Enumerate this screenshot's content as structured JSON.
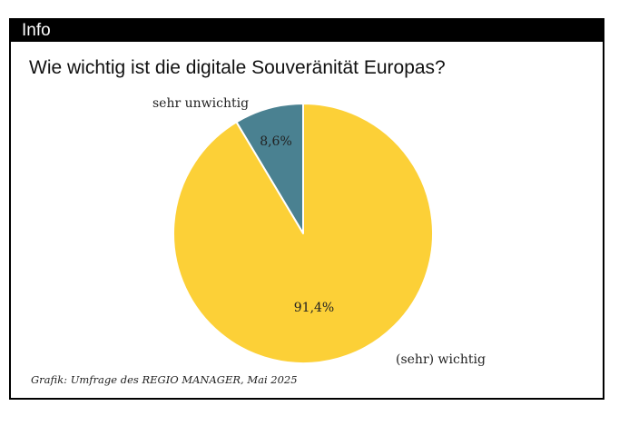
{
  "header": {
    "label": "Info"
  },
  "source": "Grafik: Umfrage des REGIO MANAGER, Mai 2025",
  "colors": {
    "header_bg": "#000000",
    "slice_wichtig": "#FCD037",
    "slice_unwichtig": "#4A8191",
    "separator": "#ffffff"
  },
  "chart_data": {
    "type": "pie",
    "title": "Wie wichtig ist die digitale Souveränität Europas?",
    "slices": [
      {
        "label": "sehr unwichtig",
        "value": 8.6,
        "value_label": "8,6%",
        "color": "#4A8191"
      },
      {
        "label": "(sehr) wichtig",
        "value": 91.4,
        "value_label": "91,4%",
        "color": "#FCD037"
      }
    ],
    "start": "12 o'clock",
    "direction": "counter-clockwise",
    "legend": "none"
  }
}
